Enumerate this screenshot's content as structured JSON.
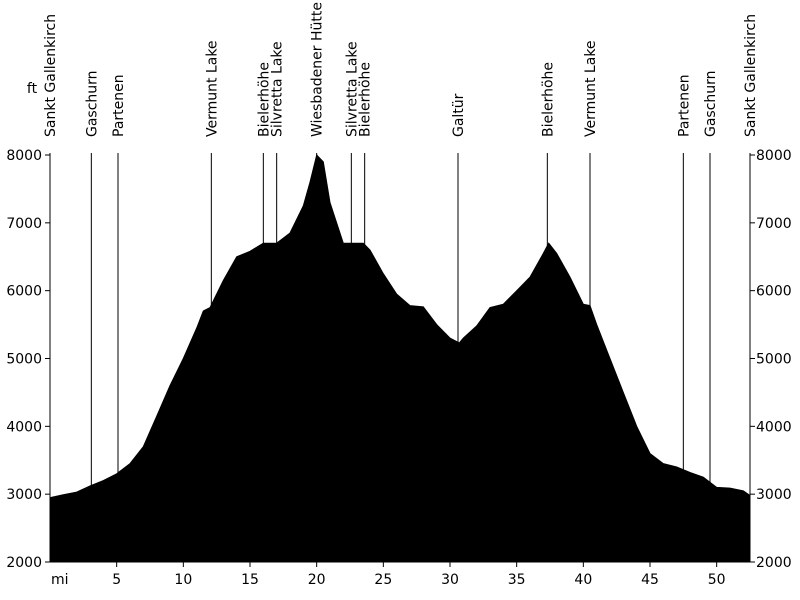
{
  "chart_data": {
    "type": "area",
    "title": "",
    "xlabel": "mi",
    "ylabel": "ft",
    "xlim": [
      0,
      52.5
    ],
    "ylim": [
      2000,
      8000
    ],
    "x_ticks": [
      5,
      10,
      15,
      20,
      25,
      30,
      35,
      40,
      45,
      50
    ],
    "y_ticks": [
      2000,
      3000,
      4000,
      5000,
      6000,
      7000,
      8000
    ],
    "grid": false,
    "fill_color": "#000000",
    "series": [
      {
        "x": [
          0,
          1,
          2,
          3,
          4,
          5,
          6,
          7,
          8,
          9,
          10,
          11,
          11.5,
          12,
          13,
          14,
          15,
          16,
          17,
          18,
          19,
          19.5,
          20,
          20.5,
          21,
          22,
          23,
          23.5,
          24,
          25,
          26,
          27,
          28,
          29,
          30,
          30.7,
          31,
          32,
          33,
          34,
          35,
          36,
          37,
          37.4,
          38,
          39,
          40,
          40.5,
          41,
          42,
          43,
          44,
          45,
          46,
          47,
          48,
          49,
          50,
          51,
          52,
          52.5
        ],
        "y": [
          2950,
          2990,
          3030,
          3120,
          3200,
          3300,
          3450,
          3700,
          4150,
          4600,
          5000,
          5450,
          5700,
          5750,
          6150,
          6500,
          6580,
          6700,
          6700,
          6850,
          7250,
          7600,
          8000,
          7900,
          7300,
          6700,
          6700,
          6700,
          6600,
          6250,
          5950,
          5780,
          5760,
          5500,
          5300,
          5230,
          5300,
          5480,
          5750,
          5800,
          6000,
          6200,
          6550,
          6700,
          6550,
          6200,
          5800,
          5780,
          5500,
          5000,
          4500,
          4000,
          3600,
          3450,
          3400,
          3320,
          3250,
          3100,
          3090,
          3050,
          2980
        ]
      }
    ],
    "waypoints": [
      {
        "label": "Sankt Gallenkirch",
        "x": 0
      },
      {
        "label": "Gaschurn",
        "x": 3.1
      },
      {
        "label": "Partenen",
        "x": 5.1
      },
      {
        "label": "Vermunt Lake",
        "x": 12.1
      },
      {
        "label": "Bielerhöhe",
        "x": 16.0
      },
      {
        "label": "Silvretta Lake",
        "x": 17.0
      },
      {
        "label": "Wiesbadener Hütte",
        "x": 20.0
      },
      {
        "label": "Silvretta Lake",
        "x": 22.6
      },
      {
        "label": "Bielerhöhe",
        "x": 23.6
      },
      {
        "label": "Galtür",
        "x": 30.6
      },
      {
        "label": "Bielerhöhe",
        "x": 37.3
      },
      {
        "label": "Vermunt Lake",
        "x": 40.5
      },
      {
        "label": "Partenen",
        "x": 47.5
      },
      {
        "label": "Gaschurn",
        "x": 49.5
      },
      {
        "label": "Sankt Gallenkirch",
        "x": 52.5
      }
    ]
  }
}
